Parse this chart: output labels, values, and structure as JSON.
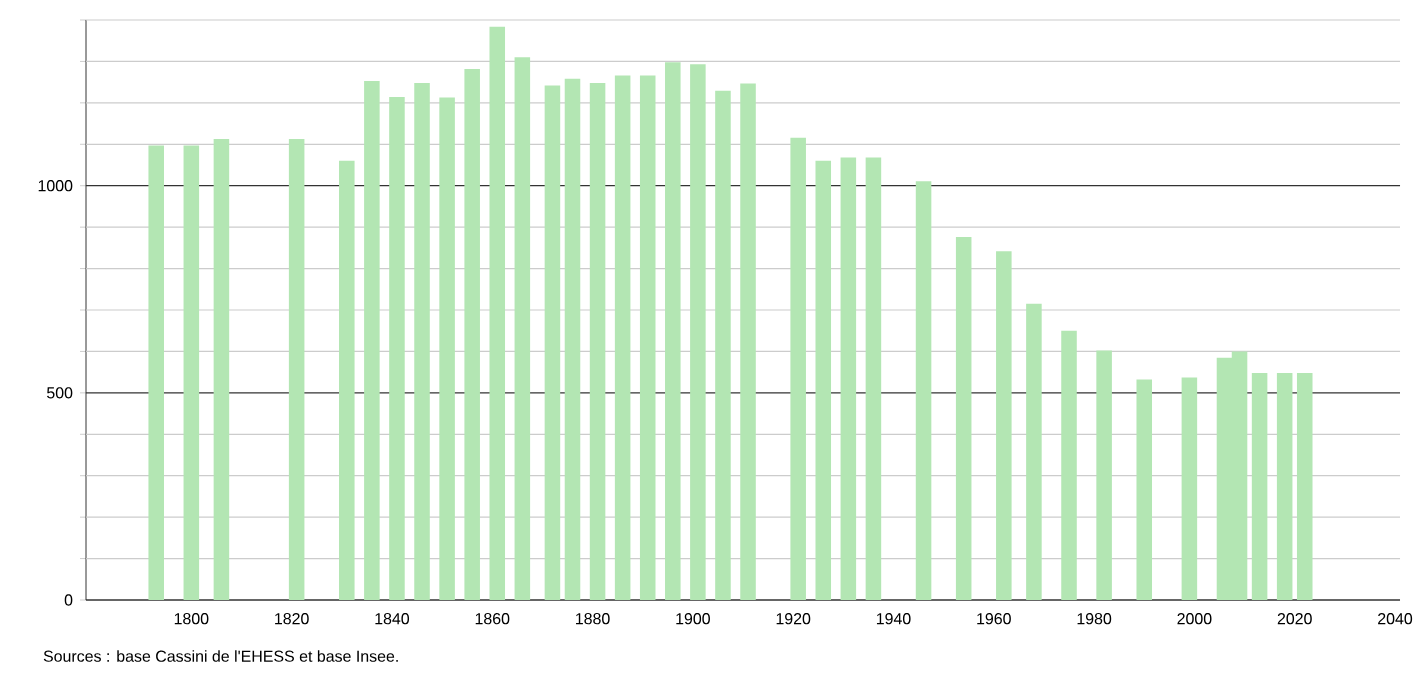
{
  "chart_data": {
    "type": "bar",
    "color": "#b3e6b3",
    "x": [
      1793,
      1800,
      1806,
      1821,
      1831,
      1836,
      1841,
      1846,
      1851,
      1856,
      1861,
      1866,
      1872,
      1876,
      1881,
      1886,
      1891,
      1896,
      1901,
      1906,
      1911,
      1921,
      1926,
      1931,
      1936,
      1946,
      1954,
      1962,
      1968,
      1975,
      1982,
      1990,
      1999,
      2006,
      2009,
      2013,
      2018,
      2022
    ],
    "values": [
      1097,
      1097,
      1113,
      1113,
      1060,
      1253,
      1214,
      1248,
      1213,
      1282,
      1384,
      1310,
      1242,
      1258,
      1248,
      1266,
      1266,
      1298,
      1293,
      1229,
      1247,
      1116,
      1060,
      1068,
      1068,
      1011,
      876,
      842,
      715,
      650,
      602,
      532,
      537,
      585,
      600,
      548,
      548,
      548
    ],
    "xlim": [
      1779,
      2041
    ],
    "ylim": [
      0,
      1400
    ],
    "xticks": [
      1800,
      1820,
      1840,
      1860,
      1880,
      1900,
      1920,
      1940,
      1960,
      1980,
      2000,
      2020,
      2040
    ],
    "yticks": [
      0,
      {
        "value": 100,
        "label": null
      },
      {
        "value": 200,
        "label": null
      },
      {
        "value": 300,
        "label": null
      },
      {
        "value": 400,
        "label": null
      },
      500,
      {
        "value": 600,
        "label": null
      },
      {
        "value": 700,
        "label": null
      },
      {
        "value": 800,
        "label": null
      },
      {
        "value": 900,
        "label": null
      },
      1000,
      {
        "value": 1100,
        "label": null
      },
      {
        "value": 1200,
        "label": null
      },
      {
        "value": 1300,
        "label": null
      },
      {
        "value": 1400,
        "label": null
      }
    ],
    "grid": "y",
    "annotations": [
      "Sources : base Cassini de l'EHESS et base Insee."
    ]
  }
}
